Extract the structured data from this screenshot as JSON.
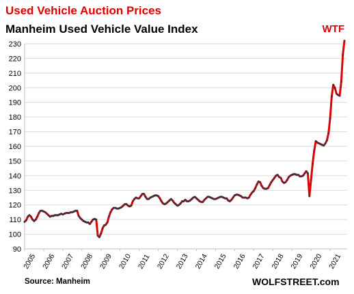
{
  "title": "Used Vehicle Auction Prices",
  "subtitle": "Manheim Used Vehicle Value Index",
  "source": "Source: Manheim",
  "brand": "WOLFSTREET.com",
  "colors": {
    "title": "#e00000",
    "line": "#e00000",
    "markers": "#333344",
    "grid": "#d9d9d9"
  },
  "chart_data": {
    "type": "line",
    "title": "Manheim Used Vehicle Value Index",
    "xlabel": "",
    "ylabel": "",
    "ylim": [
      90,
      230
    ],
    "yticks": [
      90,
      100,
      110,
      120,
      130,
      140,
      150,
      160,
      170,
      180,
      190,
      200,
      210,
      220,
      230
    ],
    "xticks": [
      "2005",
      "2006",
      "2007",
      "2008",
      "2009",
      "2010",
      "2011",
      "2012",
      "2013",
      "2014",
      "2015",
      "2016",
      "2017",
      "2018",
      "2019",
      "2020",
      "2021"
    ],
    "grid": true,
    "annotation": "WTF",
    "frequency": "monthly",
    "start": "2005-01",
    "series": [
      {
        "values": [
          108.5,
          109.5,
          112.0,
          113.0,
          112.0,
          110.0,
          109.0,
          110.0,
          112.0,
          114.5,
          116.0,
          116.0,
          115.5,
          115.0,
          114.0,
          113.0,
          112.0,
          112.5,
          112.5,
          113.0,
          113.0,
          113.0,
          113.5,
          114.0,
          113.5,
          114.0,
          114.5,
          114.5,
          114.5,
          115.0,
          115.0,
          115.5,
          116.0,
          116.0,
          112.5,
          111.0,
          110.0,
          109.0,
          108.5,
          108.0,
          108.0,
          107.0,
          108.5,
          110.0,
          110.5,
          110.0,
          99.0,
          98.0,
          100.5,
          104.0,
          106.0,
          106.5,
          108.0,
          112.0,
          115.0,
          117.0,
          118.0,
          118.0,
          117.5,
          117.5,
          118.0,
          118.5,
          119.5,
          120.5,
          120.5,
          119.5,
          119.0,
          119.5,
          122.5,
          124.0,
          125.0,
          124.5,
          124.5,
          126.0,
          127.5,
          127.5,
          125.5,
          124.0,
          124.0,
          125.0,
          125.5,
          126.0,
          126.5,
          126.5,
          126.0,
          124.5,
          122.5,
          121.0,
          120.5,
          121.0,
          122.0,
          123.0,
          124.0,
          123.0,
          121.5,
          120.5,
          119.5,
          120.0,
          121.0,
          122.5,
          122.5,
          123.5,
          122.5,
          122.5,
          123.0,
          124.0,
          125.0,
          125.5,
          124.5,
          123.5,
          122.5,
          122.0,
          122.0,
          123.5,
          124.5,
          125.5,
          125.5,
          125.0,
          124.5,
          124.0,
          124.0,
          124.5,
          125.0,
          125.5,
          125.5,
          125.0,
          124.5,
          124.5,
          123.0,
          122.5,
          123.5,
          125.0,
          126.5,
          127.0,
          127.0,
          126.5,
          126.0,
          125.0,
          125.0,
          125.0,
          124.5,
          125.0,
          127.0,
          128.5,
          129.5,
          131.5,
          134.0,
          136.0,
          135.5,
          133.0,
          131.5,
          131.0,
          131.0,
          131.5,
          133.5,
          135.5,
          137.0,
          138.5,
          140.0,
          140.5,
          139.0,
          138.5,
          136.0,
          135.0,
          135.5,
          137.0,
          139.0,
          140.0,
          140.5,
          141.0,
          141.0,
          140.5,
          140.5,
          139.5,
          139.5,
          140.0,
          141.5,
          143.0,
          141.5,
          126.0,
          137.0,
          148.0,
          157.0,
          163.5,
          162.5,
          162.0,
          161.5,
          161.0,
          160.5,
          162.0,
          164.0,
          169.0,
          179.0,
          194.0,
          202.0,
          200.0,
          196.0,
          195.0,
          194.5,
          204.0,
          222.5,
          232.0
        ]
      }
    ]
  }
}
